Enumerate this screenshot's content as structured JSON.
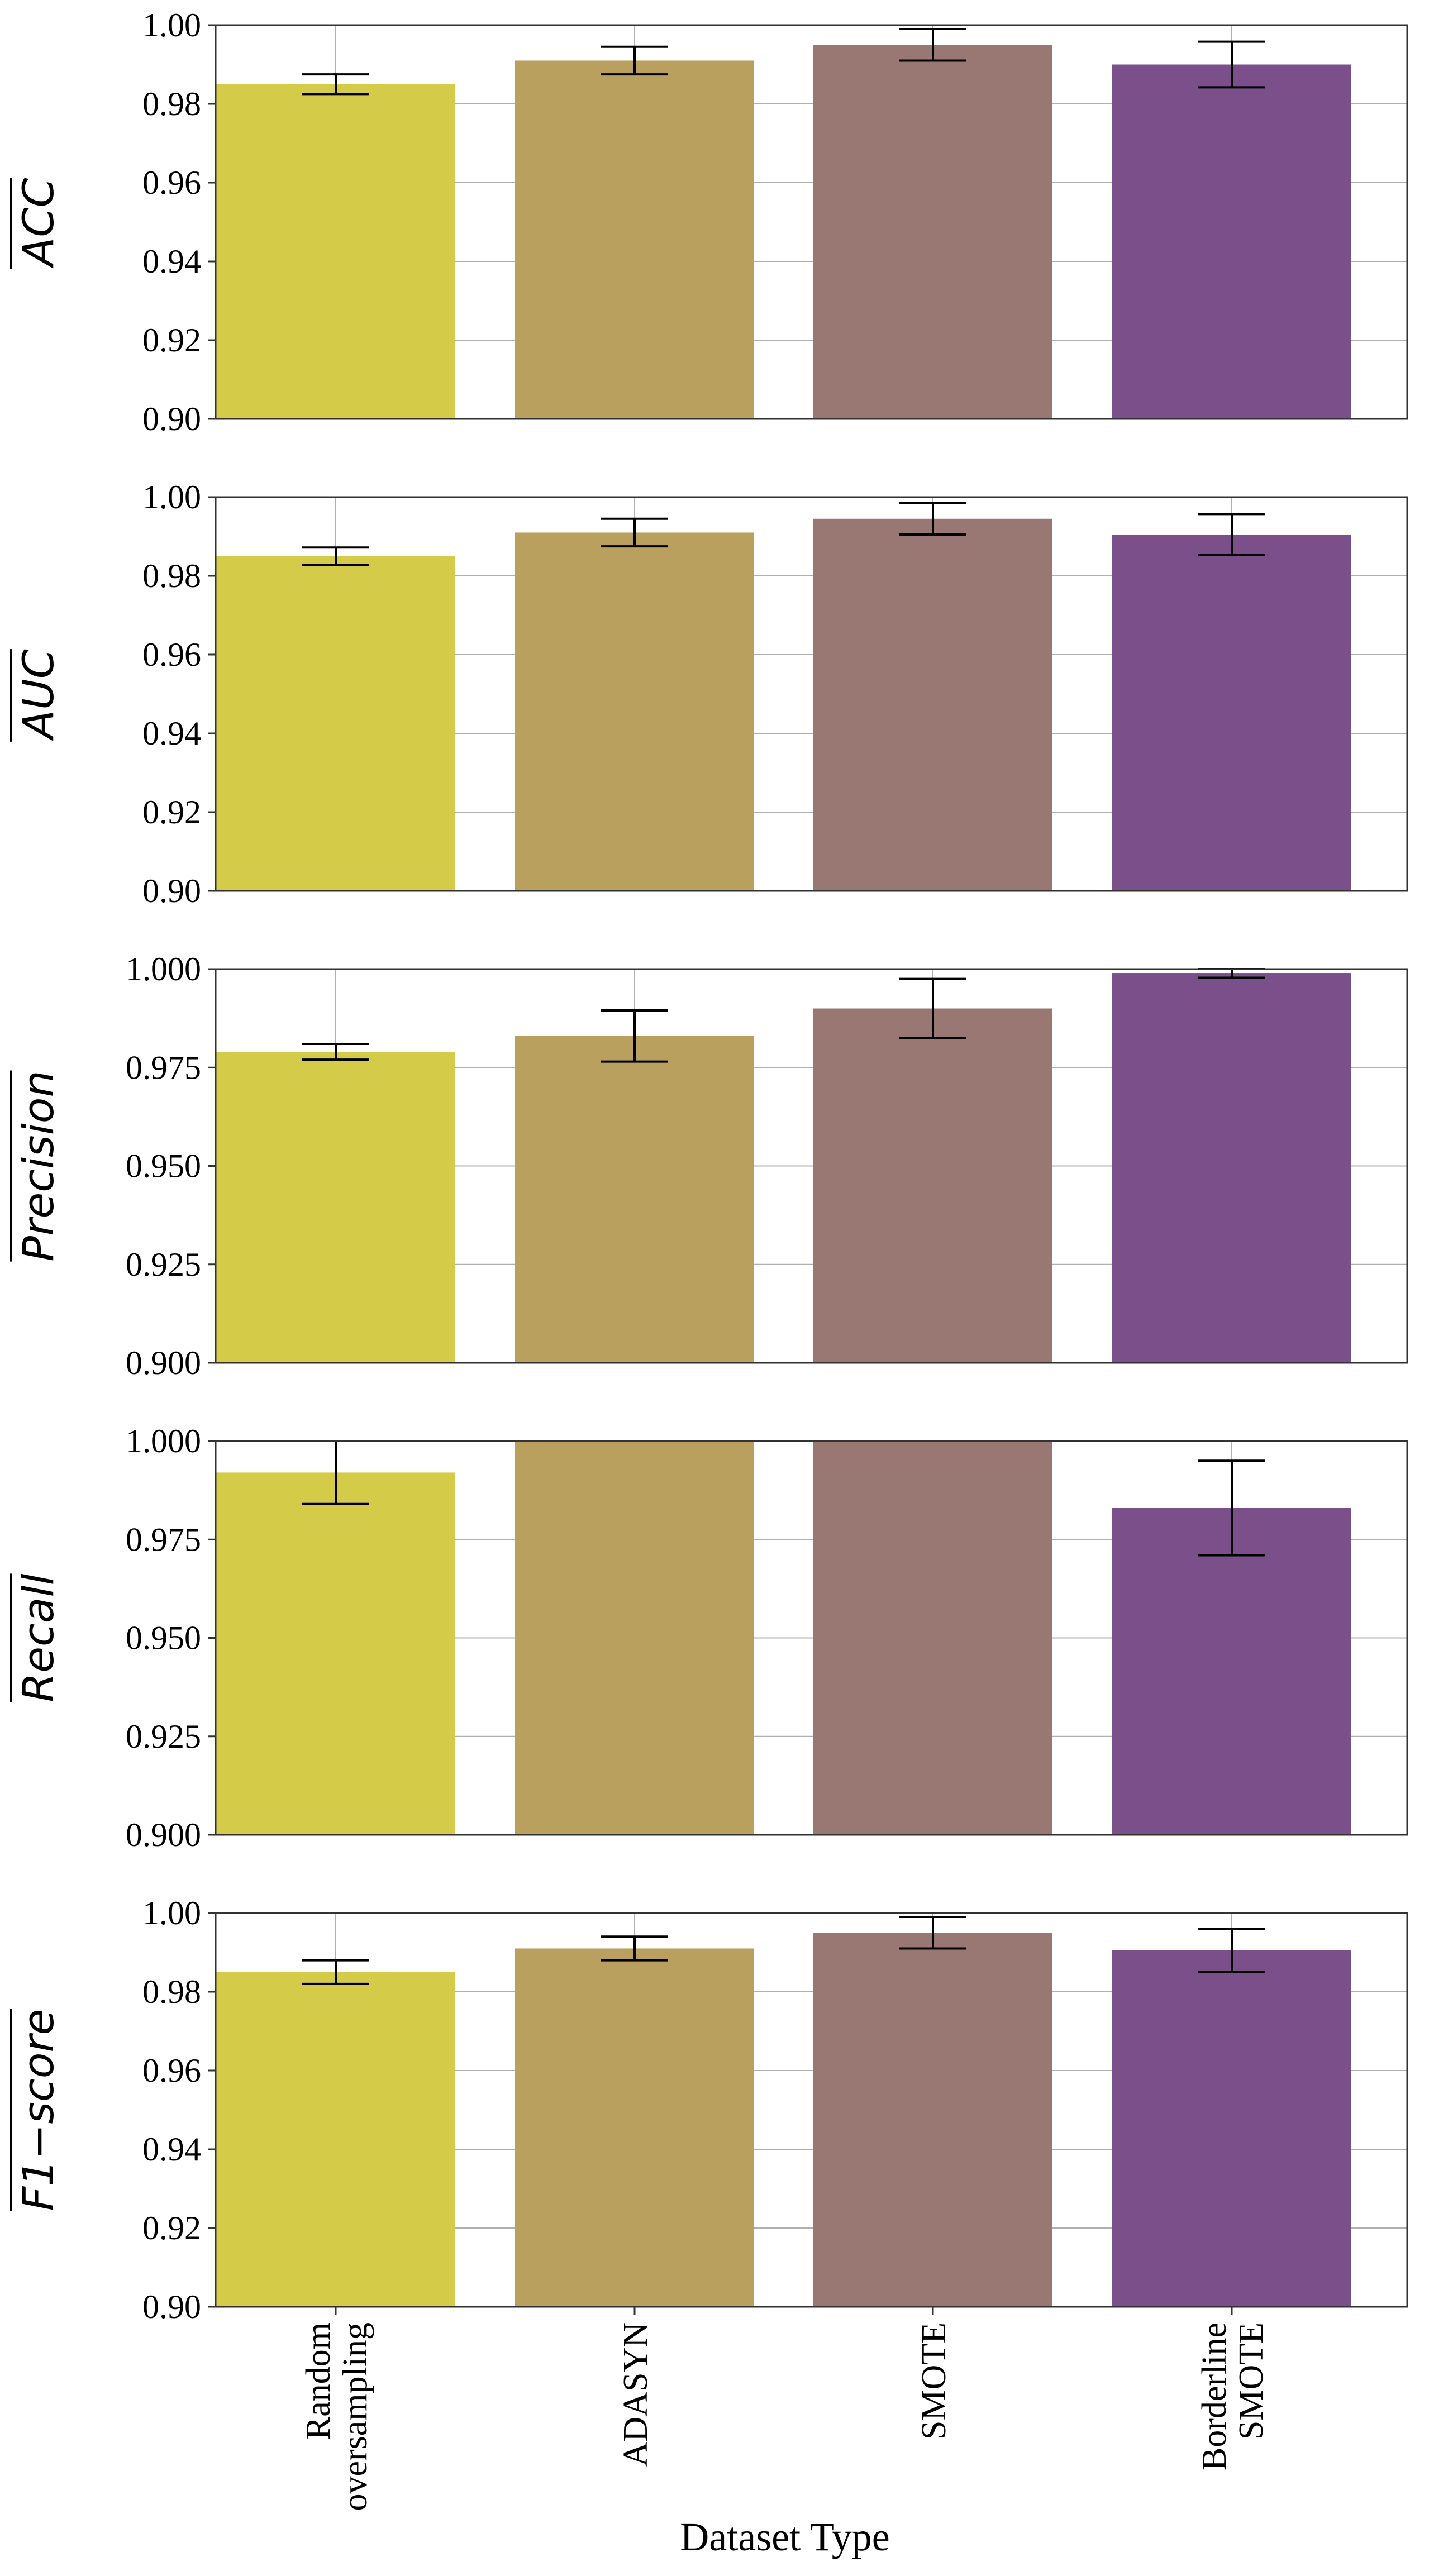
{
  "figure": {
    "xlabel": "Dataset Type",
    "categories": [
      "Random\noversampling",
      "ADASYN",
      "SMOTE",
      "Borderline\nSMOTE"
    ],
    "bar_colors": [
      "#d4cc48",
      "#b9a05e",
      "#997874",
      "#7a4f8a"
    ],
    "frame_color": "#333333",
    "grid_color": "#b0b0b0",
    "errorbar_color": "#000000"
  },
  "chart_data": [
    {
      "type": "bar",
      "ylabel": "ACC",
      "ylabel_style": "overline-italic",
      "categories": [
        "Random oversampling",
        "ADASYN",
        "SMOTE",
        "Borderline SMOTE"
      ],
      "values": [
        0.985,
        0.991,
        0.995,
        0.99
      ],
      "errors": [
        0.0025,
        0.0035,
        0.004,
        0.0058
      ],
      "ylim": [
        0.9,
        1.0
      ],
      "yticks": [
        0.9,
        0.92,
        0.94,
        0.96,
        0.98,
        1.0
      ],
      "ytick_labels": [
        "0.90",
        "0.92",
        "0.94",
        "0.96",
        "0.98",
        "1.00"
      ],
      "grid": true
    },
    {
      "type": "bar",
      "ylabel": "AUC",
      "ylabel_style": "overline-italic",
      "categories": [
        "Random oversampling",
        "ADASYN",
        "SMOTE",
        "Borderline SMOTE"
      ],
      "values": [
        0.985,
        0.991,
        0.9945,
        0.9905
      ],
      "errors": [
        0.0022,
        0.0035,
        0.004,
        0.0052
      ],
      "ylim": [
        0.9,
        1.0
      ],
      "yticks": [
        0.9,
        0.92,
        0.94,
        0.96,
        0.98,
        1.0
      ],
      "ytick_labels": [
        "0.90",
        "0.92",
        "0.94",
        "0.96",
        "0.98",
        "1.00"
      ],
      "grid": true
    },
    {
      "type": "bar",
      "ylabel": "Precision",
      "ylabel_style": "overline-italic",
      "categories": [
        "Random oversampling",
        "ADASYN",
        "SMOTE",
        "Borderline SMOTE"
      ],
      "values": [
        0.979,
        0.983,
        0.99,
        0.999
      ],
      "errors": [
        0.002,
        0.0065,
        0.0075,
        0.0012
      ],
      "ylim": [
        0.9,
        1.0
      ],
      "yticks": [
        0.9,
        0.925,
        0.95,
        0.975,
        1.0
      ],
      "ytick_labels": [
        "0.900",
        "0.925",
        "0.950",
        "0.975",
        "1.000"
      ],
      "grid": true
    },
    {
      "type": "bar",
      "ylabel": "Recall",
      "ylabel_style": "overline-italic",
      "categories": [
        "Random oversampling",
        "ADASYN",
        "SMOTE",
        "Borderline SMOTE"
      ],
      "values": [
        0.992,
        1.0,
        1.0,
        0.983
      ],
      "errors": [
        0.008,
        0.0,
        0.0,
        0.012
      ],
      "ylim": [
        0.9,
        1.0
      ],
      "yticks": [
        0.9,
        0.925,
        0.95,
        0.975,
        1.0
      ],
      "ytick_labels": [
        "0.900",
        "0.925",
        "0.950",
        "0.975",
        "1.000"
      ],
      "grid": true
    },
    {
      "type": "bar",
      "ylabel": "F1−score",
      "ylabel_style": "overline-italic",
      "categories": [
        "Random oversampling",
        "ADASYN",
        "SMOTE",
        "Borderline SMOTE"
      ],
      "values": [
        0.985,
        0.991,
        0.995,
        0.9905
      ],
      "errors": [
        0.003,
        0.003,
        0.004,
        0.0055
      ],
      "ylim": [
        0.9,
        1.0
      ],
      "yticks": [
        0.9,
        0.92,
        0.94,
        0.96,
        0.98,
        1.0
      ],
      "ytick_labels": [
        "0.90",
        "0.92",
        "0.94",
        "0.96",
        "0.98",
        "1.00"
      ],
      "grid": true
    }
  ]
}
